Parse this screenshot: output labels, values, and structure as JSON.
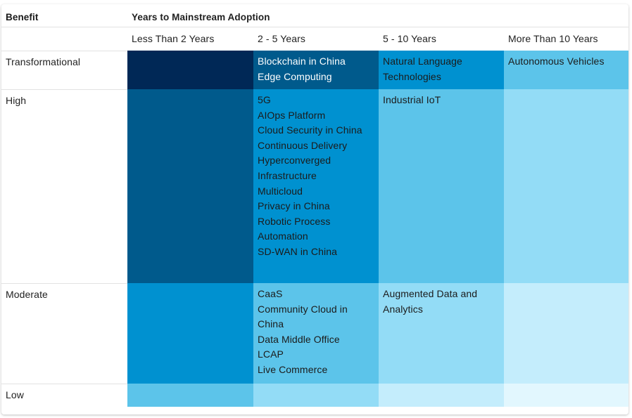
{
  "chart_data": {
    "type": "table",
    "corner_label": "Benefit",
    "column_group_label": "Years to Mainstream Adoption",
    "columns": [
      "Less Than 2 Years",
      "2 - 5 Years",
      "5 - 10 Years",
      "More Than 10 Years"
    ],
    "rows": [
      {
        "label": "Transformational",
        "cells": [
          [],
          [
            "Blockchain in China",
            "Edge Computing"
          ],
          [
            "Natural Language Technologies"
          ],
          [
            "Autonomous Vehicles"
          ]
        ]
      },
      {
        "label": "High",
        "cells": [
          [],
          [
            "5G",
            "AIOps Platform",
            "Cloud Security in China",
            "Continuous Delivery",
            "Hyperconverged Infrastructure",
            "Multicloud",
            "Privacy in China",
            "Robotic Process Automation",
            "SD-WAN in China"
          ],
          [
            "Industrial IoT"
          ],
          []
        ]
      },
      {
        "label": "Moderate",
        "cells": [
          [],
          [
            "CaaS",
            "Community Cloud in China",
            "Data Middle Office",
            "LCAP",
            "Live Commerce"
          ],
          [
            "Augmented Data and Analytics"
          ],
          []
        ]
      },
      {
        "label": "Low",
        "cells": [
          [],
          [],
          [],
          []
        ]
      }
    ],
    "cell_colors": [
      [
        "#002856",
        "#005a8c",
        "#0091d0",
        "#5cc4ea"
      ],
      [
        "#005a8c",
        "#0091d0",
        "#5cc4ea",
        "#93dcf6"
      ],
      [
        "#0091d0",
        "#5cc4ea",
        "#93dcf6",
        "#c4edfc"
      ],
      [
        "#5cc4ea",
        "#93dcf6",
        "#c4edfc",
        "#e2f7fe"
      ]
    ],
    "text_colors": [
      [
        "#ffffff",
        "#ffffff",
        "#1b1b1b",
        "#1b1b1b"
      ],
      [
        "#ffffff",
        "#1b1b1b",
        "#1b1b1b",
        "#1b1b1b"
      ],
      [
        "#1b1b1b",
        "#1b1b1b",
        "#1b1b1b",
        "#1b1b1b"
      ],
      [
        "#1b1b1b",
        "#1b1b1b",
        "#1b1b1b",
        "#1b1b1b"
      ]
    ]
  }
}
